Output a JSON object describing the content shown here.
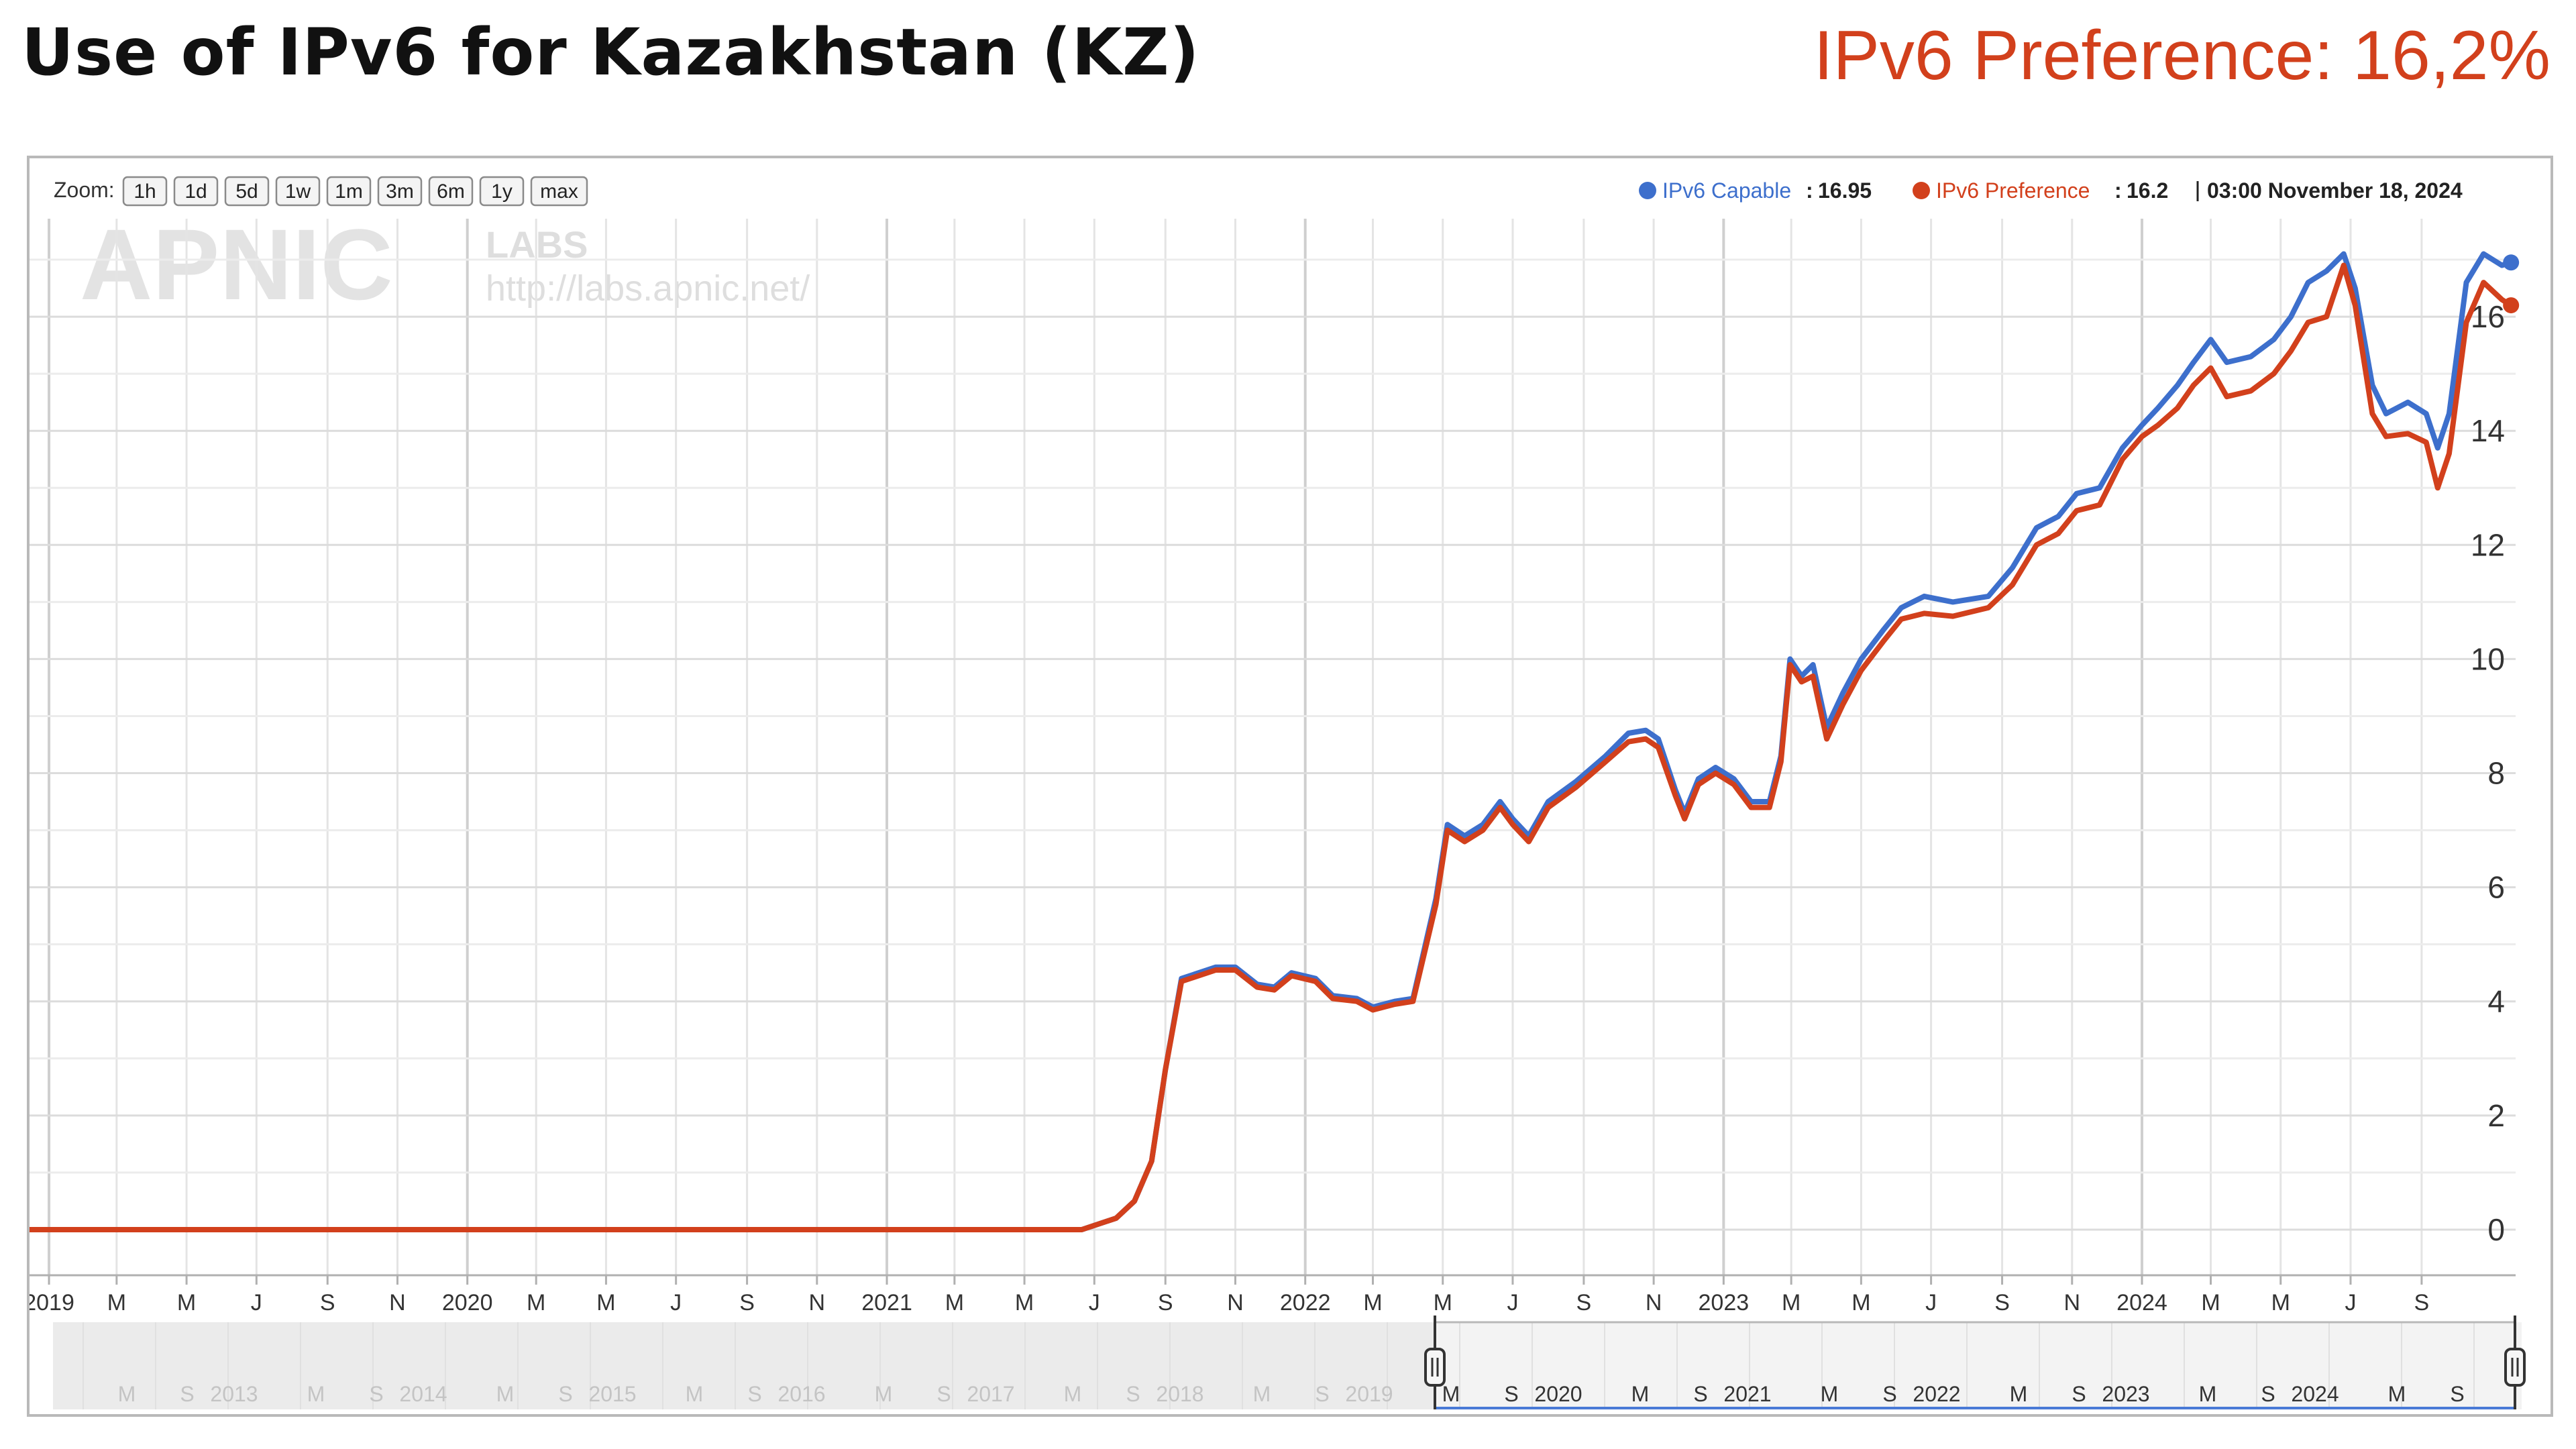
{
  "header": {
    "title": "Use of IPv6 for Kazakhstan (KZ)",
    "preference_label": "IPv6 Preference: 16,2%"
  },
  "zoom": {
    "label": "Zoom:",
    "buttons": [
      "1h",
      "1d",
      "5d",
      "1w",
      "1m",
      "3m",
      "6m",
      "1y",
      "max"
    ]
  },
  "legend": {
    "capable_label": "IPv6 Capable",
    "capable_value": "16.95",
    "preference_label": "IPv6 Preference",
    "preference_value": "16.2",
    "timestamp": "03:00 November 18, 2024"
  },
  "watermark": {
    "logo": "APNIC",
    "labs": "LABS",
    "url": "http://labs.apnic.net/"
  },
  "colors": {
    "capable": "#3d6fcc",
    "preference": "#d2401c",
    "title_pref": "#d2401c"
  },
  "navigator": {
    "labels": [
      "M",
      "S",
      "2013",
      "M",
      "S",
      "2014",
      "M",
      "S",
      "2015",
      "M",
      "S",
      "2016",
      "M",
      "S",
      "2017",
      "M",
      "S",
      "2018",
      "M",
      "S",
      "2019",
      "M",
      "S",
      "2020",
      "M",
      "S",
      "2021",
      "M",
      "S",
      "2022",
      "M",
      "S",
      "2023",
      "M",
      "S",
      "2024",
      "M",
      "S"
    ]
  },
  "chart_data": {
    "type": "line",
    "x_ticks": [
      "2019",
      "M",
      "M",
      "J",
      "S",
      "N",
      "2020",
      "M",
      "M",
      "J",
      "S",
      "N",
      "2021",
      "M",
      "M",
      "J",
      "S",
      "N",
      "2022",
      "M",
      "M",
      "J",
      "S",
      "N",
      "2023",
      "M",
      "M",
      "J",
      "S",
      "N",
      "2024",
      "M",
      "M",
      "J",
      "S"
    ],
    "y_ticks": [
      0,
      2,
      4,
      6,
      8,
      10,
      12,
      14,
      16
    ],
    "ylim": [
      -0.8,
      17.6
    ],
    "xlim": [
      "2018-12-15",
      "2024-11-22"
    ],
    "grid": true,
    "legend_position": "top-right",
    "series": [
      {
        "name": "IPv6 Capable",
        "points": [
          [
            "2018-12-15",
            0
          ],
          [
            "2021-06-20",
            0
          ],
          [
            "2021-07-20",
            0.2
          ],
          [
            "2021-08-05",
            0.5
          ],
          [
            "2021-08-20",
            1.2
          ],
          [
            "2021-09-01",
            2.8
          ],
          [
            "2021-09-15",
            4.4
          ],
          [
            "2021-10-15",
            4.6
          ],
          [
            "2021-11-01",
            4.6
          ],
          [
            "2021-11-20",
            4.3
          ],
          [
            "2021-12-05",
            4.25
          ],
          [
            "2021-12-20",
            4.5
          ],
          [
            "2022-01-10",
            4.4
          ],
          [
            "2022-01-25",
            4.1
          ],
          [
            "2022-02-15",
            4.05
          ],
          [
            "2022-03-01",
            3.9
          ],
          [
            "2022-03-20",
            4.0
          ],
          [
            "2022-04-05",
            4.05
          ],
          [
            "2022-04-25",
            5.8
          ],
          [
            "2022-05-05",
            7.1
          ],
          [
            "2022-05-20",
            6.9
          ],
          [
            "2022-06-05",
            7.1
          ],
          [
            "2022-06-20",
            7.5
          ],
          [
            "2022-07-01",
            7.2
          ],
          [
            "2022-07-15",
            6.9
          ],
          [
            "2022-08-01",
            7.5
          ],
          [
            "2022-08-25",
            7.85
          ],
          [
            "2022-09-20",
            8.3
          ],
          [
            "2022-10-10",
            8.7
          ],
          [
            "2022-10-25",
            8.75
          ],
          [
            "2022-11-05",
            8.6
          ],
          [
            "2022-11-20",
            7.7
          ],
          [
            "2022-11-28",
            7.3
          ],
          [
            "2022-12-10",
            7.9
          ],
          [
            "2022-12-25",
            8.1
          ],
          [
            "2023-01-10",
            7.9
          ],
          [
            "2023-01-25",
            7.5
          ],
          [
            "2023-02-10",
            7.5
          ],
          [
            "2023-02-20",
            8.3
          ],
          [
            "2023-02-28",
            10.0
          ],
          [
            "2023-03-10",
            9.7
          ],
          [
            "2023-03-20",
            9.9
          ],
          [
            "2023-04-01",
            8.8
          ],
          [
            "2023-04-15",
            9.4
          ],
          [
            "2023-05-01",
            10.0
          ],
          [
            "2023-05-20",
            10.5
          ],
          [
            "2023-06-05",
            10.9
          ],
          [
            "2023-06-25",
            11.1
          ],
          [
            "2023-07-20",
            11.0
          ],
          [
            "2023-08-20",
            11.1
          ],
          [
            "2023-09-10",
            11.6
          ],
          [
            "2023-10-01",
            12.3
          ],
          [
            "2023-10-20",
            12.5
          ],
          [
            "2023-11-05",
            12.9
          ],
          [
            "2023-11-25",
            13.0
          ],
          [
            "2023-12-15",
            13.7
          ],
          [
            "2024-01-01",
            14.1
          ],
          [
            "2024-01-15",
            14.4
          ],
          [
            "2024-02-01",
            14.8
          ],
          [
            "2024-02-15",
            15.2
          ],
          [
            "2024-03-01",
            15.6
          ],
          [
            "2024-03-15",
            15.2
          ],
          [
            "2024-04-05",
            15.3
          ],
          [
            "2024-04-25",
            15.6
          ],
          [
            "2024-05-10",
            16.0
          ],
          [
            "2024-05-25",
            16.6
          ],
          [
            "2024-06-10",
            16.8
          ],
          [
            "2024-06-25",
            17.1
          ],
          [
            "2024-07-05",
            16.5
          ],
          [
            "2024-07-20",
            14.8
          ],
          [
            "2024-08-01",
            14.3
          ],
          [
            "2024-08-20",
            14.5
          ],
          [
            "2024-09-05",
            14.3
          ],
          [
            "2024-09-15",
            13.7
          ],
          [
            "2024-09-25",
            14.3
          ],
          [
            "2024-10-10",
            16.6
          ],
          [
            "2024-10-25",
            17.1
          ],
          [
            "2024-11-10",
            16.9
          ],
          [
            "2024-11-18",
            16.95
          ]
        ]
      },
      {
        "name": "IPv6 Preference",
        "points": [
          [
            "2018-12-15",
            0
          ],
          [
            "2021-06-20",
            0
          ],
          [
            "2021-07-20",
            0.2
          ],
          [
            "2021-08-05",
            0.5
          ],
          [
            "2021-08-20",
            1.2
          ],
          [
            "2021-09-01",
            2.8
          ],
          [
            "2021-09-15",
            4.35
          ],
          [
            "2021-10-15",
            4.55
          ],
          [
            "2021-11-01",
            4.55
          ],
          [
            "2021-11-20",
            4.25
          ],
          [
            "2021-12-05",
            4.2
          ],
          [
            "2021-12-20",
            4.45
          ],
          [
            "2022-01-10",
            4.35
          ],
          [
            "2022-01-25",
            4.05
          ],
          [
            "2022-02-15",
            4.0
          ],
          [
            "2022-03-01",
            3.85
          ],
          [
            "2022-03-20",
            3.95
          ],
          [
            "2022-04-05",
            4.0
          ],
          [
            "2022-04-25",
            5.7
          ],
          [
            "2022-05-05",
            7.0
          ],
          [
            "2022-05-20",
            6.8
          ],
          [
            "2022-06-05",
            7.0
          ],
          [
            "2022-06-20",
            7.4
          ],
          [
            "2022-07-01",
            7.1
          ],
          [
            "2022-07-15",
            6.8
          ],
          [
            "2022-08-01",
            7.4
          ],
          [
            "2022-08-25",
            7.75
          ],
          [
            "2022-09-20",
            8.2
          ],
          [
            "2022-10-10",
            8.55
          ],
          [
            "2022-10-25",
            8.6
          ],
          [
            "2022-11-05",
            8.45
          ],
          [
            "2022-11-20",
            7.6
          ],
          [
            "2022-11-28",
            7.2
          ],
          [
            "2022-12-10",
            7.8
          ],
          [
            "2022-12-25",
            8.0
          ],
          [
            "2023-01-10",
            7.8
          ],
          [
            "2023-01-25",
            7.4
          ],
          [
            "2023-02-10",
            7.4
          ],
          [
            "2023-02-20",
            8.2
          ],
          [
            "2023-02-28",
            9.9
          ],
          [
            "2023-03-10",
            9.6
          ],
          [
            "2023-03-20",
            9.7
          ],
          [
            "2023-04-01",
            8.6
          ],
          [
            "2023-04-15",
            9.2
          ],
          [
            "2023-05-01",
            9.8
          ],
          [
            "2023-05-20",
            10.3
          ],
          [
            "2023-06-05",
            10.7
          ],
          [
            "2023-06-25",
            10.8
          ],
          [
            "2023-07-20",
            10.75
          ],
          [
            "2023-08-20",
            10.9
          ],
          [
            "2023-09-10",
            11.3
          ],
          [
            "2023-10-01",
            12.0
          ],
          [
            "2023-10-20",
            12.2
          ],
          [
            "2023-11-05",
            12.6
          ],
          [
            "2023-11-25",
            12.7
          ],
          [
            "2023-12-15",
            13.5
          ],
          [
            "2024-01-01",
            13.9
          ],
          [
            "2024-01-15",
            14.1
          ],
          [
            "2024-02-01",
            14.4
          ],
          [
            "2024-02-15",
            14.8
          ],
          [
            "2024-03-01",
            15.1
          ],
          [
            "2024-03-15",
            14.6
          ],
          [
            "2024-04-05",
            14.7
          ],
          [
            "2024-04-25",
            15.0
          ],
          [
            "2024-05-10",
            15.4
          ],
          [
            "2024-05-25",
            15.9
          ],
          [
            "2024-06-10",
            16.0
          ],
          [
            "2024-06-25",
            16.9
          ],
          [
            "2024-07-05",
            16.2
          ],
          [
            "2024-07-20",
            14.3
          ],
          [
            "2024-08-01",
            13.9
          ],
          [
            "2024-08-20",
            13.95
          ],
          [
            "2024-09-05",
            13.8
          ],
          [
            "2024-09-15",
            13.0
          ],
          [
            "2024-09-25",
            13.6
          ],
          [
            "2024-10-10",
            15.9
          ],
          [
            "2024-10-25",
            16.6
          ],
          [
            "2024-11-10",
            16.3
          ],
          [
            "2024-11-18",
            16.2
          ]
        ]
      }
    ]
  }
}
